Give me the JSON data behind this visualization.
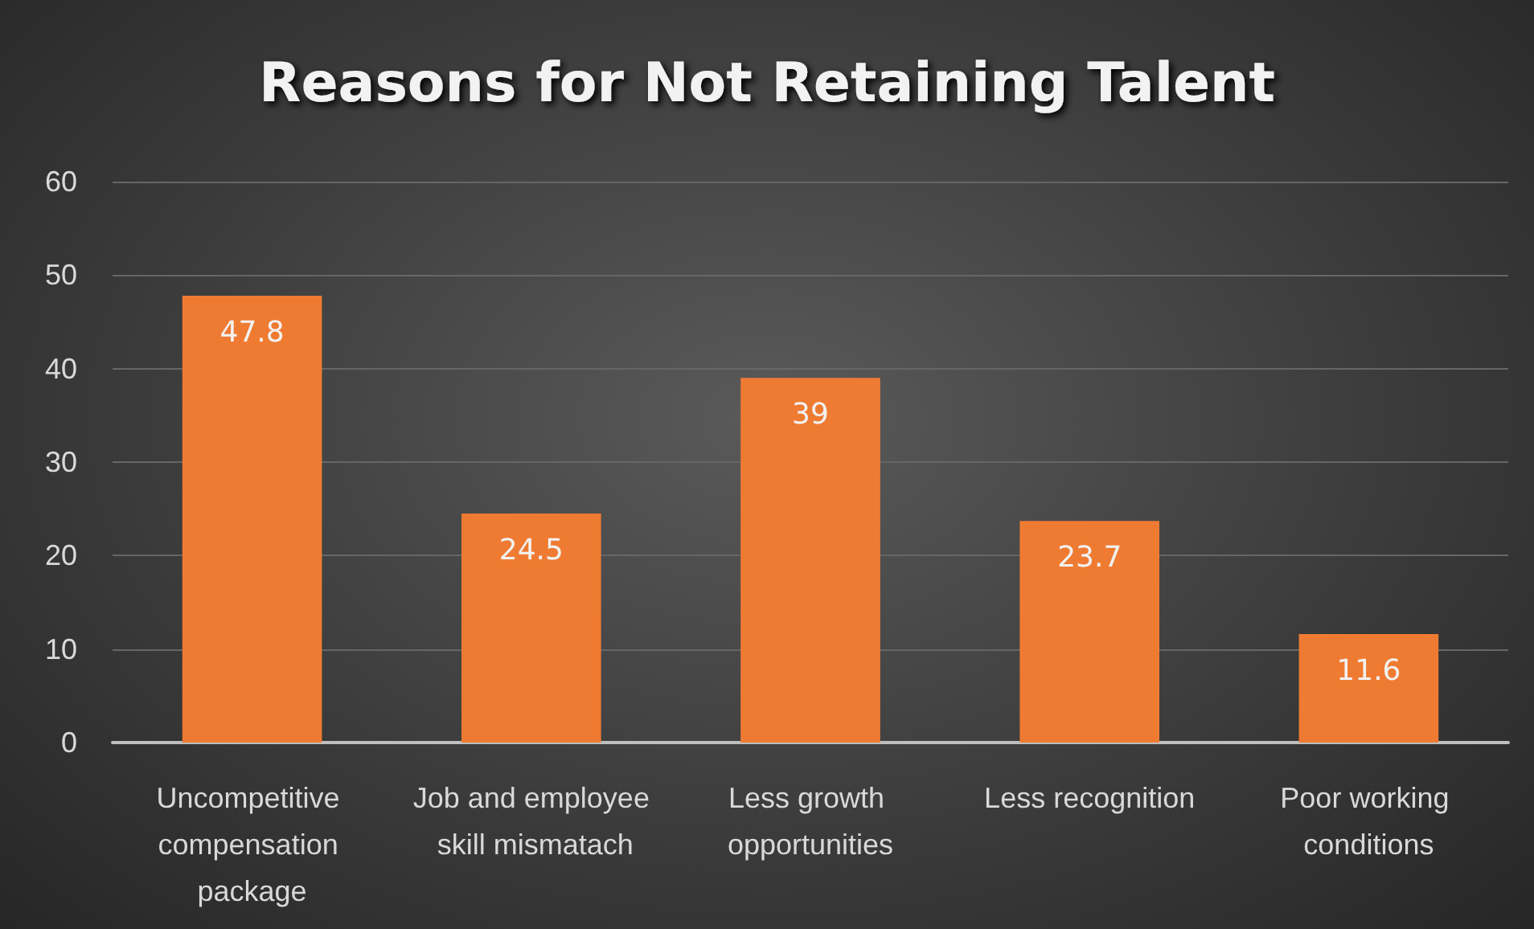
{
  "chart_data": {
    "type": "bar",
    "title": "Reasons for Not Retaining Talent",
    "categories": [
      "Uncompetitive compensation package",
      "Job and employee skill mismatach",
      "Less growth opportunities",
      "Less recognition",
      "Poor working conditions"
    ],
    "values": [
      47.8,
      24.5,
      39,
      23.7,
      11.6
    ],
    "color": "#ef7b32",
    "ylim": [
      0,
      60
    ],
    "yticks": [
      0,
      10,
      20,
      30,
      40,
      50,
      60
    ],
    "grid": "y",
    "data_labels": true
  }
}
